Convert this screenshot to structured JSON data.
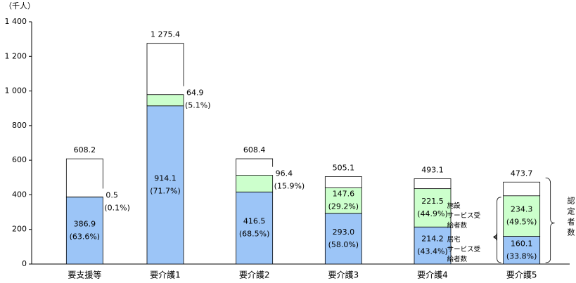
{
  "chart_data": {
    "type": "stacked_bar",
    "unit_label": "（千人）",
    "categories": [
      "要支援等",
      "要介護1",
      "要介護2",
      "要介護3",
      "要介護4",
      "要介護5"
    ],
    "series": [
      {
        "name": "居宅\nサービス受\n給者数",
        "color": "#9cc5f7",
        "values": [
          386.9,
          914.1,
          416.5,
          293.0,
          214.2,
          160.1
        ],
        "value_labels": [
          "386.9",
          "914.1",
          "416.5",
          "293.0",
          "214.2",
          "160.1"
        ],
        "share_labels": [
          "(63.6%)",
          "(71.7%)",
          "(68.5%)",
          "(58.0%)",
          "(43.4%)",
          "(33.8%)"
        ]
      },
      {
        "name": "施設\nサービス受\n給者数",
        "color": "#ccffcc",
        "values": [
          0.5,
          64.9,
          96.4,
          147.6,
          221.5,
          234.3
        ],
        "value_labels": [
          "0.5",
          "64.9",
          "96.4",
          "147.6",
          "221.5",
          "234.3"
        ],
        "share_labels": [
          "(0.1%)",
          "(5.1%)",
          "(15.9%)",
          "(29.2%)",
          "(44.9%)",
          "(49.5%)"
        ]
      }
    ],
    "totals": {
      "values": [
        608.2,
        1275.4,
        608.4,
        505.1,
        493.1,
        473.7
      ],
      "value_labels": [
        "608.2",
        "1 275.4",
        "608.4",
        "505.1",
        "493.1",
        "473.7"
      ]
    },
    "total_label": "認定者数",
    "ylim": [
      0,
      1400
    ],
    "yticks": [
      0,
      200,
      400,
      600,
      800,
      {
        "value": 1000,
        "label": "1 000"
      },
      {
        "value": 1200,
        "label": "1 200"
      },
      {
        "value": 1400,
        "label": "1 400"
      }
    ]
  }
}
